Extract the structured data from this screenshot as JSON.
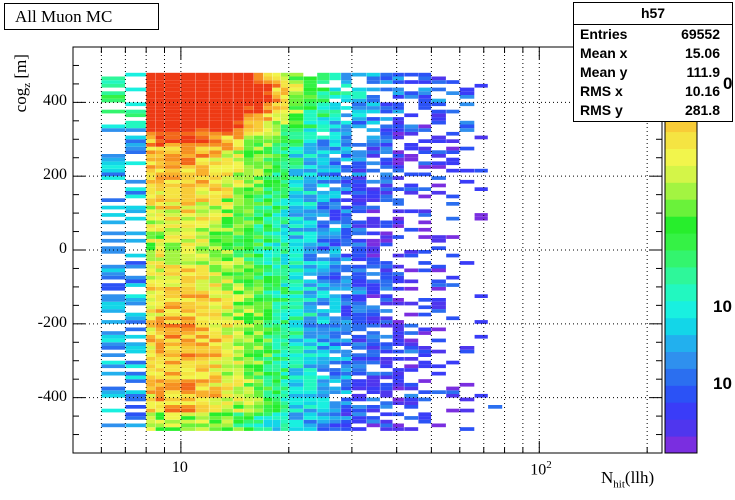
{
  "chart_data": {
    "type": "heatmap",
    "title": "All Muon MC",
    "xlabel_main": "N",
    "xlabel_sub": "hit",
    "xlabel_tail": "(llh)",
    "ylabel_main": "cog",
    "ylabel_sub": "z",
    "ylabel_tail": " [m]",
    "x_scale": "log",
    "xlim": [
      5,
      220
    ],
    "ylim": [
      -550,
      550
    ],
    "grid": true,
    "x_tick_labels": [
      {
        "base": "10",
        "exp": "",
        "value": 10
      },
      {
        "base": "10",
        "exp": "2",
        "value": 100
      }
    ],
    "y_ticks": [
      -400,
      -200,
      0,
      200,
      400
    ],
    "color_scale_labels": [
      {
        "text": "10",
        "level": 0.36
      },
      {
        "text": "10",
        "level": 0.17
      }
    ],
    "stats": {
      "name": "h57",
      "entries_label": "Entries",
      "entries": "69552",
      "mean_x_label": "Mean x",
      "mean_x": "15.06",
      "mean_y_label": "Mean y",
      "mean_y": "111.9",
      "rms_x_label": "RMS x",
      "rms_x": "10.16",
      "rms_y_label": "RMS y",
      "rms_y": "281.8"
    },
    "palette": [
      "#7a2ee0",
      "#4f36ee",
      "#3a3cf8",
      "#2b52f6",
      "#2b6ff0",
      "#2f90ee",
      "#22b0ee",
      "#13d6e8",
      "#19f0e0",
      "#22f8c0",
      "#2ef79a",
      "#33f56e",
      "#35f245",
      "#27ee2c",
      "#6af23a",
      "#a3f441",
      "#d4f548",
      "#f2f54c",
      "#f5e442",
      "#f8cc38",
      "#f9b02c",
      "#f69022",
      "#f3691a",
      "#ee3a14"
    ],
    "density_model": {
      "description": "approximate occupancy of the histogram: counts peak near N=10, z=+420, decay towards large N",
      "x_bins_lo_edges": [
        6,
        7,
        8,
        8.5,
        9,
        10,
        11,
        12,
        13,
        14,
        15,
        16,
        17,
        18,
        19,
        20,
        22,
        24,
        26,
        28,
        30,
        33,
        36,
        39,
        42,
        46,
        50,
        55,
        60,
        66,
        72,
        79,
        86,
        95,
        105,
        120,
        140,
        165,
        190
      ],
      "y_bin_width": 10,
      "y_range": [
        -490,
        480
      ]
    }
  }
}
